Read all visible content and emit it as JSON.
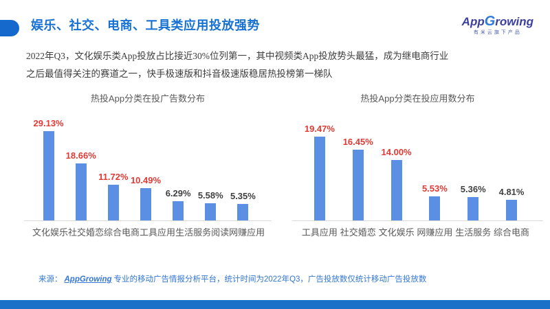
{
  "header": {
    "title": "娱乐、社交、电商、工具类应用投放强势",
    "logo": {
      "part1": "App",
      "part2": "G",
      "part3": "rowing",
      "subtitle": "有米云旗下产品"
    }
  },
  "intro": {
    "line1": "2022年Q3，文化娱乐类App投放占比接近30%位列第一，其中视频类App投放势头最猛，成为继电商行业",
    "line2": "之后最值得关注的赛道之一，快手极速版和抖音极速版稳居热投榜第一梯队"
  },
  "colors": {
    "accent_blue": "#1771d3",
    "pill_blue": "#1568cc",
    "bottom_bar_blue": "#1b71c8",
    "bar_blue": "#5b8fe4",
    "value_red": "#e03a34",
    "value_dark": "#404040",
    "axis_gray": "#d9d9d9",
    "label_gray": "#595959",
    "footer_blue": "#3377d6"
  },
  "chart_data": [
    {
      "type": "bar",
      "title": "热投App分类在投广告数分布",
      "categories": [
        "文化娱乐",
        "社交婚恋",
        "综合电商",
        "工具应用",
        "生活服务",
        "阅读",
        "网赚应用"
      ],
      "values": [
        29.13,
        18.66,
        11.72,
        10.49,
        6.29,
        5.58,
        5.35
      ],
      "value_labels": [
        "29.13%",
        "18.66%",
        "11.72%",
        "10.49%",
        "6.29%",
        "5.58%",
        "5.35%"
      ],
      "label_styles": [
        "red",
        "red",
        "red",
        "red",
        "dark",
        "dark",
        "dark"
      ],
      "bar_color": "#5b8fe4",
      "xlabel": "",
      "ylabel": "",
      "ylim": [
        0,
        30
      ],
      "grid": false,
      "legend": "none"
    },
    {
      "type": "bar",
      "title": "热投App分类在投应用数分布",
      "categories": [
        "工具应用",
        "社交婚恋",
        "文化娱乐",
        "网赚应用",
        "生活服务",
        "综合电商"
      ],
      "values": [
        19.47,
        16.45,
        14.0,
        5.53,
        5.36,
        4.81
      ],
      "value_labels": [
        "19.47%",
        "16.45%",
        "14.00%",
        "5.53%",
        "5.36%",
        "4.81%"
      ],
      "label_styles": [
        "red",
        "red",
        "red",
        "red",
        "dark",
        "dark"
      ],
      "bar_color": "#5b8fe4",
      "xlabel": "",
      "ylabel": "",
      "ylim": [
        0,
        20
      ],
      "grid": false,
      "legend": "none"
    }
  ],
  "footer": {
    "prefix": "来源：",
    "brand": "AppGrowing",
    "text": "专业的移动广告情报分析平台，统计时间为2022年Q3，广告投放数仅统计移动广告投放数"
  }
}
